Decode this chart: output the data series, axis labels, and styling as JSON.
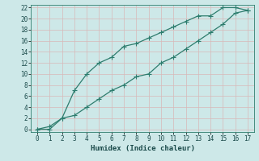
{
  "xlabel": "Humidex (Indice chaleur)",
  "bg_color": "#cde8e8",
  "grid_color": "#c8d8d8",
  "line_color": "#2e7d6e",
  "xlim": [
    -0.5,
    17.5
  ],
  "ylim": [
    -0.5,
    22.5
  ],
  "xticks": [
    0,
    1,
    2,
    3,
    4,
    5,
    6,
    7,
    8,
    9,
    10,
    11,
    12,
    13,
    14,
    15,
    16,
    17
  ],
  "yticks": [
    0,
    2,
    4,
    6,
    8,
    10,
    12,
    14,
    16,
    18,
    20,
    22
  ],
  "curve1_x": [
    0,
    1,
    2,
    3,
    4,
    5,
    6,
    7,
    8,
    9,
    10,
    11,
    12,
    13,
    14,
    15,
    16,
    17
  ],
  "curve1_y": [
    0,
    0,
    2,
    7,
    10,
    12,
    13,
    15,
    15.5,
    16.5,
    17.5,
    18.5,
    19.5,
    20.5,
    20.5,
    22,
    22,
    21.5
  ],
  "curve2_x": [
    0,
    1,
    2,
    3,
    4,
    5,
    6,
    7,
    8,
    9,
    10,
    11,
    12,
    13,
    14,
    15,
    16,
    17
  ],
  "curve2_y": [
    0,
    0.5,
    2,
    2.5,
    4,
    5.5,
    7,
    8,
    9.5,
    10,
    12,
    13,
    14.5,
    16,
    17.5,
    19,
    21,
    21.5
  ],
  "marker": "+",
  "markersize": 4,
  "markeredgewidth": 0.8,
  "linewidth": 0.9
}
